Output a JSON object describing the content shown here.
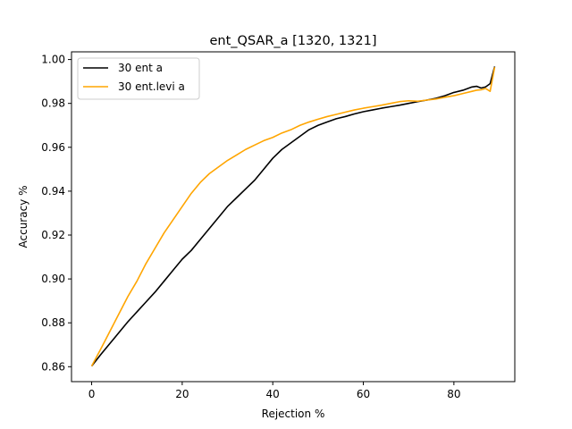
{
  "chart_data": {
    "type": "line",
    "title": "ent_QSAR_a  [1320, 1321]",
    "xlabel": "Rejection %",
    "ylabel": "Accuracy %",
    "xlim": [
      -4.45,
      93.45
    ],
    "ylim": [
      0.8532,
      1.0035
    ],
    "xticks": [
      0,
      20,
      40,
      60,
      80
    ],
    "yticks": [
      0.86,
      0.88,
      0.9,
      0.92,
      0.94,
      0.96,
      0.98,
      1.0
    ],
    "ytick_labels": [
      "0.86",
      "0.88",
      "0.90",
      "0.92",
      "0.94",
      "0.96",
      "0.98",
      "1.00"
    ],
    "legend_position": "top-left",
    "grid": false,
    "series": [
      {
        "name": "30 ent a",
        "color": "#000000",
        "x": [
          0,
          2,
          4,
          6,
          8,
          10,
          12,
          14,
          16,
          18,
          20,
          22,
          24,
          26,
          28,
          30,
          32,
          34,
          36,
          38,
          40,
          42,
          44,
          46,
          48,
          50,
          52,
          54,
          56,
          58,
          60,
          62,
          64,
          66,
          68,
          70,
          72,
          74,
          76,
          78,
          80,
          82,
          84,
          85,
          86,
          87,
          88,
          89
        ],
        "y": [
          0.8603,
          0.8655,
          0.8705,
          0.8755,
          0.8805,
          0.885,
          0.8895,
          0.894,
          0.899,
          0.904,
          0.909,
          0.913,
          0.918,
          0.923,
          0.928,
          0.933,
          0.937,
          0.941,
          0.945,
          0.95,
          0.955,
          0.959,
          0.962,
          0.965,
          0.968,
          0.97,
          0.9715,
          0.973,
          0.974,
          0.9752,
          0.9762,
          0.977,
          0.9778,
          0.9785,
          0.9792,
          0.98,
          0.9808,
          0.9815,
          0.9823,
          0.9835,
          0.985,
          0.986,
          0.9875,
          0.9878,
          0.987,
          0.9875,
          0.989,
          0.9968
        ]
      },
      {
        "name": "30 ent.levi a",
        "color": "#ffa500",
        "x": [
          0,
          2,
          4,
          6,
          8,
          10,
          12,
          14,
          16,
          18,
          20,
          22,
          24,
          26,
          28,
          30,
          32,
          34,
          36,
          38,
          40,
          42,
          44,
          46,
          48,
          50,
          52,
          54,
          56,
          58,
          60,
          62,
          64,
          66,
          68,
          70,
          72,
          74,
          76,
          78,
          80,
          82,
          84,
          85,
          86,
          87,
          88,
          89
        ],
        "y": [
          0.8603,
          0.868,
          0.876,
          0.884,
          0.892,
          0.899,
          0.907,
          0.914,
          0.921,
          0.927,
          0.933,
          0.939,
          0.944,
          0.948,
          0.951,
          0.954,
          0.9565,
          0.959,
          0.961,
          0.963,
          0.9645,
          0.9665,
          0.968,
          0.97,
          0.9715,
          0.9728,
          0.974,
          0.975,
          0.976,
          0.977,
          0.9778,
          0.9785,
          0.9792,
          0.98,
          0.9808,
          0.9812,
          0.981,
          0.9815,
          0.982,
          0.9828,
          0.9835,
          0.9845,
          0.9855,
          0.986,
          0.9862,
          0.9868,
          0.9855,
          0.9965
        ]
      }
    ]
  }
}
